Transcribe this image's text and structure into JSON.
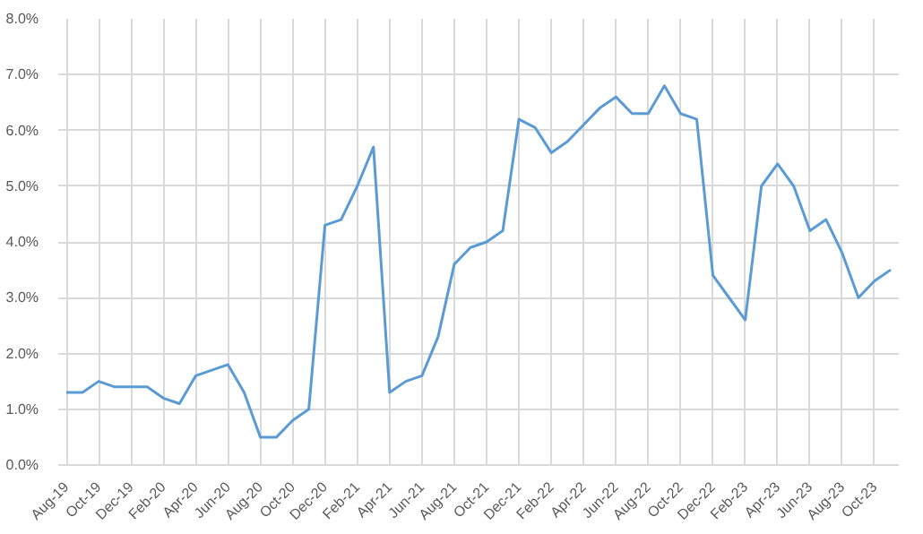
{
  "chart_data": {
    "type": "line",
    "categories": [
      "Aug-19",
      null,
      "Oct-19",
      null,
      "Dec-19",
      null,
      "Feb-20",
      null,
      "Apr-20",
      null,
      "Jun-20",
      null,
      "Aug-20",
      null,
      "Oct-20",
      null,
      "Dec-20",
      null,
      "Feb-21",
      null,
      "Apr-21",
      null,
      "Jun-21",
      null,
      "Aug-21",
      null,
      "Oct-21",
      null,
      "Dec-21",
      null,
      "Feb-22",
      null,
      "Apr-22",
      null,
      "Jun-22",
      null,
      "Aug-22",
      null,
      "Oct-22",
      null,
      "Dec-22",
      null,
      "Feb-23",
      null,
      "Apr-23",
      null,
      "Jun-23",
      null,
      "Aug-23",
      null,
      "Oct-23",
      null
    ],
    "values": [
      1.3,
      1.3,
      1.5,
      1.4,
      1.4,
      1.4,
      1.2,
      1.1,
      1.6,
      1.7,
      1.8,
      1.3,
      0.5,
      0.5,
      0.8,
      1.0,
      4.3,
      4.4,
      5.0,
      5.7,
      1.3,
      1.5,
      1.6,
      2.3,
      3.6,
      3.9,
      4.0,
      4.2,
      6.2,
      6.05,
      5.6,
      5.8,
      6.1,
      6.4,
      6.6,
      6.3,
      6.3,
      6.8,
      6.3,
      6.2,
      3.4,
      3.0,
      2.6,
      5.0,
      5.4,
      5.0,
      4.2,
      4.4,
      3.8,
      3.0,
      3.3,
      3.5
    ],
    "color": "#5b9bd5",
    "ylim": [
      0,
      8
    ],
    "yticks": [
      {
        "value": 0,
        "label": "0.0%"
      },
      {
        "value": 1,
        "label": "1.0%"
      },
      {
        "value": 2,
        "label": "2.0%"
      },
      {
        "value": 3,
        "label": "3.0%"
      },
      {
        "value": 4,
        "label": "4.0%"
      },
      {
        "value": 5,
        "label": "5.0%"
      },
      {
        "value": 6,
        "label": "6.0%"
      },
      {
        "value": 7,
        "label": "7.0%"
      },
      {
        "value": 8,
        "label": "8.0%"
      }
    ],
    "grid": true,
    "marker": "none",
    "line_style": "solid"
  }
}
